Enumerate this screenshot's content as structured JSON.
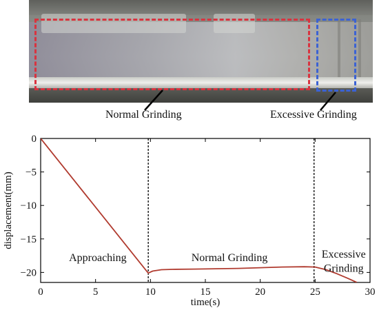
{
  "photo": {
    "labels": {
      "normal": "Normal Grinding",
      "excessive": "Excessive Grinding"
    },
    "colors": {
      "normal_box": "#d9333f",
      "excessive_box": "#3b62d4"
    }
  },
  "chart_data": {
    "type": "line",
    "xlabel": "time(s)",
    "ylabel": "displacement(mm)",
    "xlim": [
      0,
      30
    ],
    "ylim": [
      -21.5,
      0
    ],
    "xticks": [
      0,
      5,
      10,
      15,
      20,
      25,
      30
    ],
    "yticks": [
      0,
      -5,
      -10,
      -15,
      -20
    ],
    "grid": false,
    "series": [
      {
        "color": "#b03a2e",
        "x": [
          0,
          9.8,
          10.2,
          11,
          12,
          14,
          16,
          18,
          20,
          22,
          24,
          25,
          26,
          27,
          28,
          28.8
        ],
        "y": [
          0,
          -20.1,
          -19.8,
          -19.6,
          -19.55,
          -19.5,
          -19.45,
          -19.4,
          -19.3,
          -19.2,
          -19.15,
          -19.2,
          -19.6,
          -20.2,
          -20.9,
          -21.5
        ]
      }
    ],
    "vlines": [
      9.8,
      24.9
    ],
    "annotations": [
      {
        "text": "Approaching",
        "x": 5.2,
        "y": -18.3
      },
      {
        "text": "Normal Grinding",
        "x": 17.2,
        "y": -18.3
      },
      {
        "text": "Excessive",
        "x": 27.6,
        "y": -17.8
      },
      {
        "text": "Grinding",
        "x": 27.6,
        "y": -19.9
      }
    ]
  }
}
